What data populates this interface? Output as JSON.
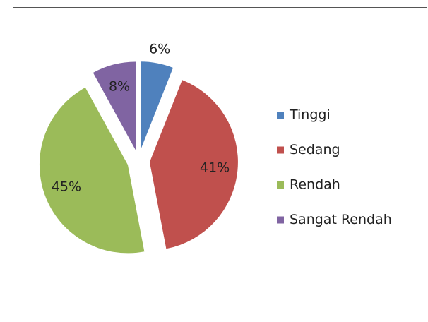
{
  "chart_data": {
    "type": "pie",
    "categories": [
      "Tinggi",
      "Sedang",
      "Rendah",
      "Sangat Rendah"
    ],
    "values": [
      6,
      41,
      45,
      8
    ],
    "value_labels": [
      "6%",
      "41%",
      "45%",
      "8%"
    ],
    "colors": [
      "#4f81bd",
      "#c0504d",
      "#9bbb59",
      "#8064a2"
    ],
    "legend": "right"
  }
}
